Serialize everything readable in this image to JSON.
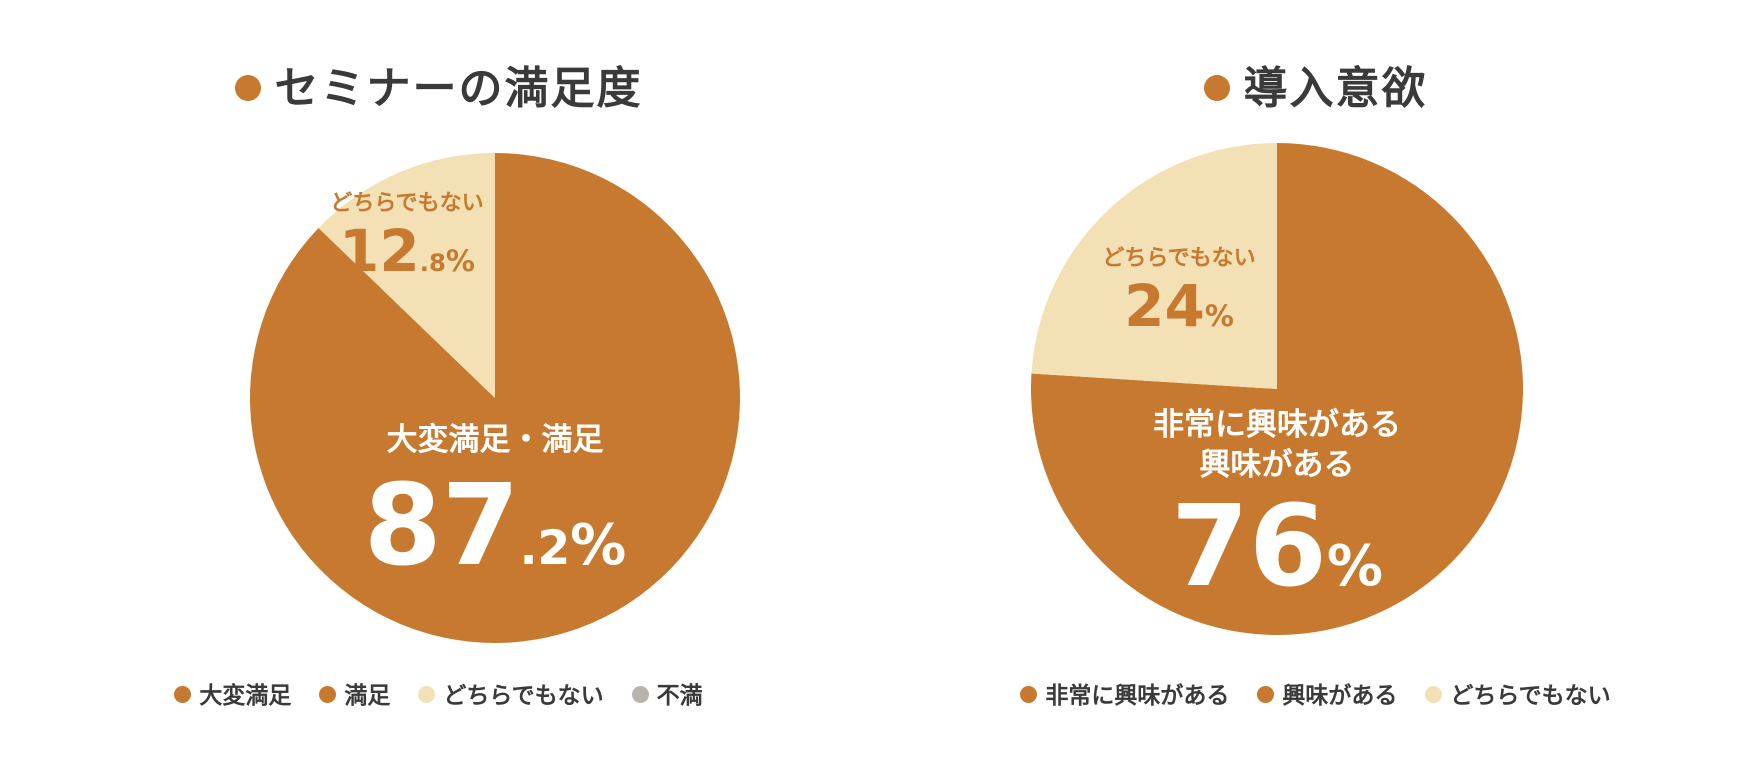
{
  "colors": {
    "primary": "#c77a2f",
    "light": "#f3e0b4",
    "grey": "#b7b5aa",
    "title_dot": "#c77a2f",
    "text_dark": "#3a3a3a",
    "label_white": "#ffffff"
  },
  "chart_data": [
    {
      "type": "pie",
      "title": "セミナーの満足度",
      "slices": [
        {
          "name": "大変満足・満足",
          "value": 87.2,
          "color": "#c77a2f"
        },
        {
          "name": "どちらでもない",
          "value": 12.8,
          "color": "#f3e0b4"
        }
      ],
      "labels": [
        {
          "caption_lines": [
            "大変満足・満足"
          ],
          "int": "87",
          "frac": ".2",
          "unit": "%"
        },
        {
          "caption_lines": [
            "どちらでもない"
          ],
          "int": "12",
          "frac": ".8",
          "unit": "%"
        }
      ],
      "legend": [
        {
          "name": "大変満足",
          "color": "#c77a2f"
        },
        {
          "name": "満足",
          "color": "#c77a2f"
        },
        {
          "name": "どちらでもない",
          "color": "#f3e0b4"
        },
        {
          "name": "不満",
          "color": "#b7b5aa"
        }
      ],
      "legend_position": "bottom"
    },
    {
      "type": "pie",
      "title": "導入意欲",
      "slices": [
        {
          "name": "非常に興味がある・興味がある",
          "value": 76,
          "color": "#c77a2f"
        },
        {
          "name": "どちらでもない",
          "value": 24,
          "color": "#f3e0b4"
        }
      ],
      "labels": [
        {
          "caption_lines": [
            "非常に興味がある",
            "興味がある"
          ],
          "int": "76",
          "frac": "",
          "unit": "%"
        },
        {
          "caption_lines": [
            "どちらでもない"
          ],
          "int": "24",
          "frac": "",
          "unit": "%"
        }
      ],
      "legend": [
        {
          "name": "非常に興味がある",
          "color": "#c77a2f"
        },
        {
          "name": "興味がある",
          "color": "#c77a2f"
        },
        {
          "name": "どちらでもない",
          "color": "#f3e0b4"
        }
      ],
      "legend_position": "bottom"
    }
  ]
}
